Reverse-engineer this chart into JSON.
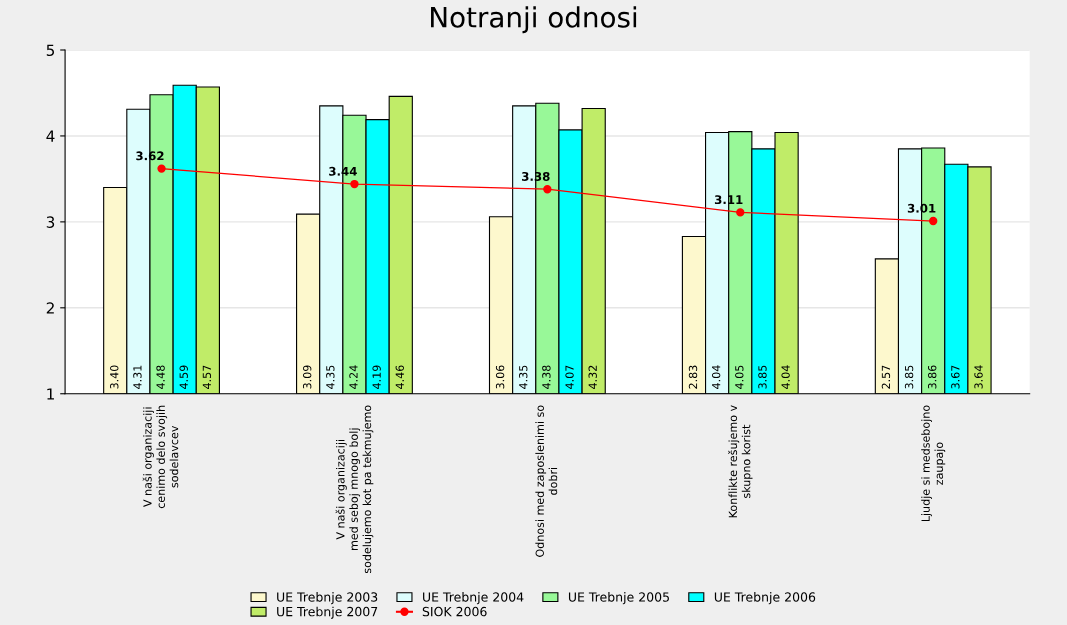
{
  "chart_data": {
    "type": "bar",
    "title": "Notranji odnosi",
    "categories": [
      "V naši organizaciji\ncenimo delo svojih\nsodelavcev",
      "V naši organizaciji\nmed seboj mnogo bolj\nsodelujemo kot pa tekmujemo",
      "Odnosi med zaposlenimi so\ndobri",
      "Konflikte rešujemo v\nskupno korist",
      "Ljudje si medsebojno\nzaupajo"
    ],
    "series": [
      {
        "name": "UE Trebnje 2003",
        "color": "#fdf8cd",
        "values": [
          3.4,
          3.09,
          3.06,
          2.83,
          2.57
        ],
        "value_labels": [
          "3.40",
          "3.09",
          "3.06",
          "2.83",
          "2.57"
        ]
      },
      {
        "name": "UE Trebnje 2004",
        "color": "#ddfdfd",
        "values": [
          4.31,
          4.35,
          4.35,
          4.04,
          3.85
        ],
        "value_labels": [
          "4.31",
          "4.35",
          "4.35",
          "4.04",
          "3.85"
        ]
      },
      {
        "name": "UE Trebnje 2005",
        "color": "#98f898",
        "values": [
          4.48,
          4.24,
          4.38,
          4.05,
          3.86
        ],
        "value_labels": [
          "4.48",
          "4.24",
          "4.38",
          "4.05",
          "3.86"
        ]
      },
      {
        "name": "UE Trebnje 2006",
        "color": "#00ffff",
        "values": [
          4.59,
          4.19,
          4.07,
          3.85,
          3.67
        ],
        "value_labels": [
          "4.59",
          "4.19",
          "4.07",
          "3.85",
          "3.67"
        ]
      },
      {
        "name": "UE Trebnje 2007",
        "color": "#c0ec68",
        "values": [
          4.57,
          4.46,
          4.32,
          4.04,
          3.64
        ],
        "value_labels": [
          "4.57",
          "4.46",
          "4.32",
          "4.04",
          "3.64"
        ]
      },
      {
        "name": "SIOK 2006",
        "type": "line",
        "color": "#ff0000",
        "values": [
          3.62,
          3.44,
          3.38,
          3.11,
          3.01
        ],
        "value_labels": [
          "3.62",
          "3.44",
          "3.38",
          "3.11",
          "3.01"
        ]
      }
    ],
    "ylim": [
      1,
      5
    ],
    "yticks": [
      1,
      2,
      3,
      4,
      5
    ],
    "grid": "y",
    "legend": "bottom",
    "marker": "circle"
  }
}
